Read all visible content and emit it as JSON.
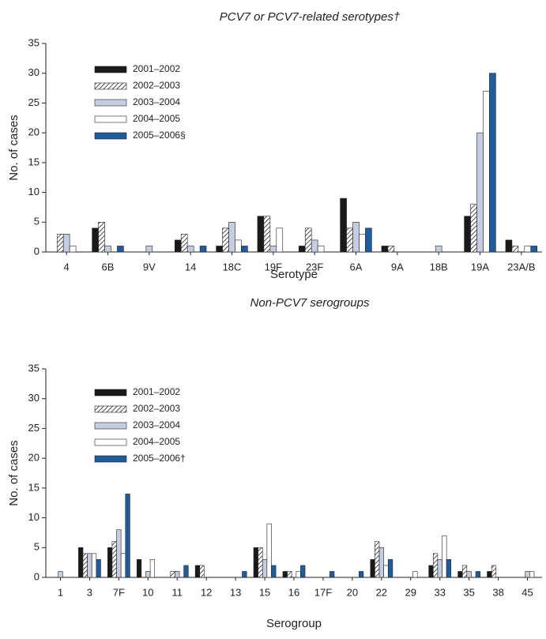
{
  "chart_data": [
    {
      "type": "bar",
      "title": "PCV7 or PCV7-related serotypes†",
      "x_label": "Serotype",
      "y_label": "No. of cases",
      "categories": [
        "4",
        "6B",
        "9V",
        "14",
        "18C",
        "19F",
        "23F",
        "6A",
        "9A",
        "18B",
        "19A",
        "23A/B"
      ],
      "series": [
        {
          "name": "2001–2002",
          "color": "#1a1a1a",
          "values": [
            0,
            4,
            0,
            2,
            1,
            6,
            1,
            9,
            1,
            0,
            6,
            2
          ]
        },
        {
          "name": "2002–2003",
          "color": "#ffffff",
          "hatch": true,
          "values": [
            3,
            5,
            0,
            3,
            4,
            6,
            4,
            4,
            1,
            0,
            8,
            1
          ]
        },
        {
          "name": "2003–2004",
          "color": "#c5cde2",
          "values": [
            3,
            1,
            1,
            1,
            5,
            1,
            2,
            5,
            0,
            1,
            20,
            0
          ]
        },
        {
          "name": "2004–2005",
          "color": "#ffffff",
          "values": [
            1,
            0,
            0,
            0,
            2,
            4,
            1,
            3,
            0,
            0,
            27,
            1
          ]
        },
        {
          "name": "2005–2006§",
          "color": "#1f5c9e",
          "values": [
            0,
            1,
            0,
            1,
            1,
            0,
            0,
            4,
            0,
            0,
            30,
            1
          ]
        }
      ],
      "ylim": [
        0,
        35
      ],
      "yticks": [
        0,
        5,
        10,
        15,
        20,
        25,
        30,
        35
      ]
    },
    {
      "type": "bar",
      "title": "Non-PCV7 serogroups",
      "x_label": "Serogroup",
      "y_label": "No. of cases",
      "categories": [
        "1",
        "3",
        "7F",
        "10",
        "11",
        "12",
        "13",
        "15",
        "16",
        "17F",
        "20",
        "22",
        "29",
        "33",
        "35",
        "38",
        "45"
      ],
      "series": [
        {
          "name": "2001–2002",
          "color": "#1a1a1a",
          "values": [
            0,
            5,
            5,
            3,
            0,
            2,
            0,
            5,
            1,
            0,
            0,
            3,
            0,
            2,
            1,
            1,
            0
          ]
        },
        {
          "name": "2002–2003",
          "color": "#ffffff",
          "hatch": true,
          "values": [
            0,
            4,
            6,
            0,
            1,
            2,
            0,
            5,
            1,
            0,
            0,
            6,
            0,
            4,
            2,
            2,
            0
          ]
        },
        {
          "name": "2003–2004",
          "color": "#c5cde2",
          "values": [
            1,
            4,
            8,
            1,
            1,
            0,
            0,
            3,
            0,
            0,
            0,
            5,
            0,
            3,
            1,
            0,
            1
          ]
        },
        {
          "name": "2004–2005",
          "color": "#ffffff",
          "values": [
            0,
            4,
            4,
            3,
            0,
            0,
            0,
            9,
            1,
            0,
            0,
            2,
            1,
            7,
            0,
            0,
            1
          ]
        },
        {
          "name": "2005–2006†",
          "color": "#1f5c9e",
          "values": [
            0,
            3,
            14,
            0,
            2,
            0,
            1,
            2,
            2,
            1,
            1,
            3,
            0,
            3,
            1,
            0,
            0
          ]
        }
      ],
      "ylim": [
        0,
        35
      ],
      "yticks": [
        0,
        5,
        10,
        15,
        20,
        25,
        30,
        35
      ]
    }
  ]
}
